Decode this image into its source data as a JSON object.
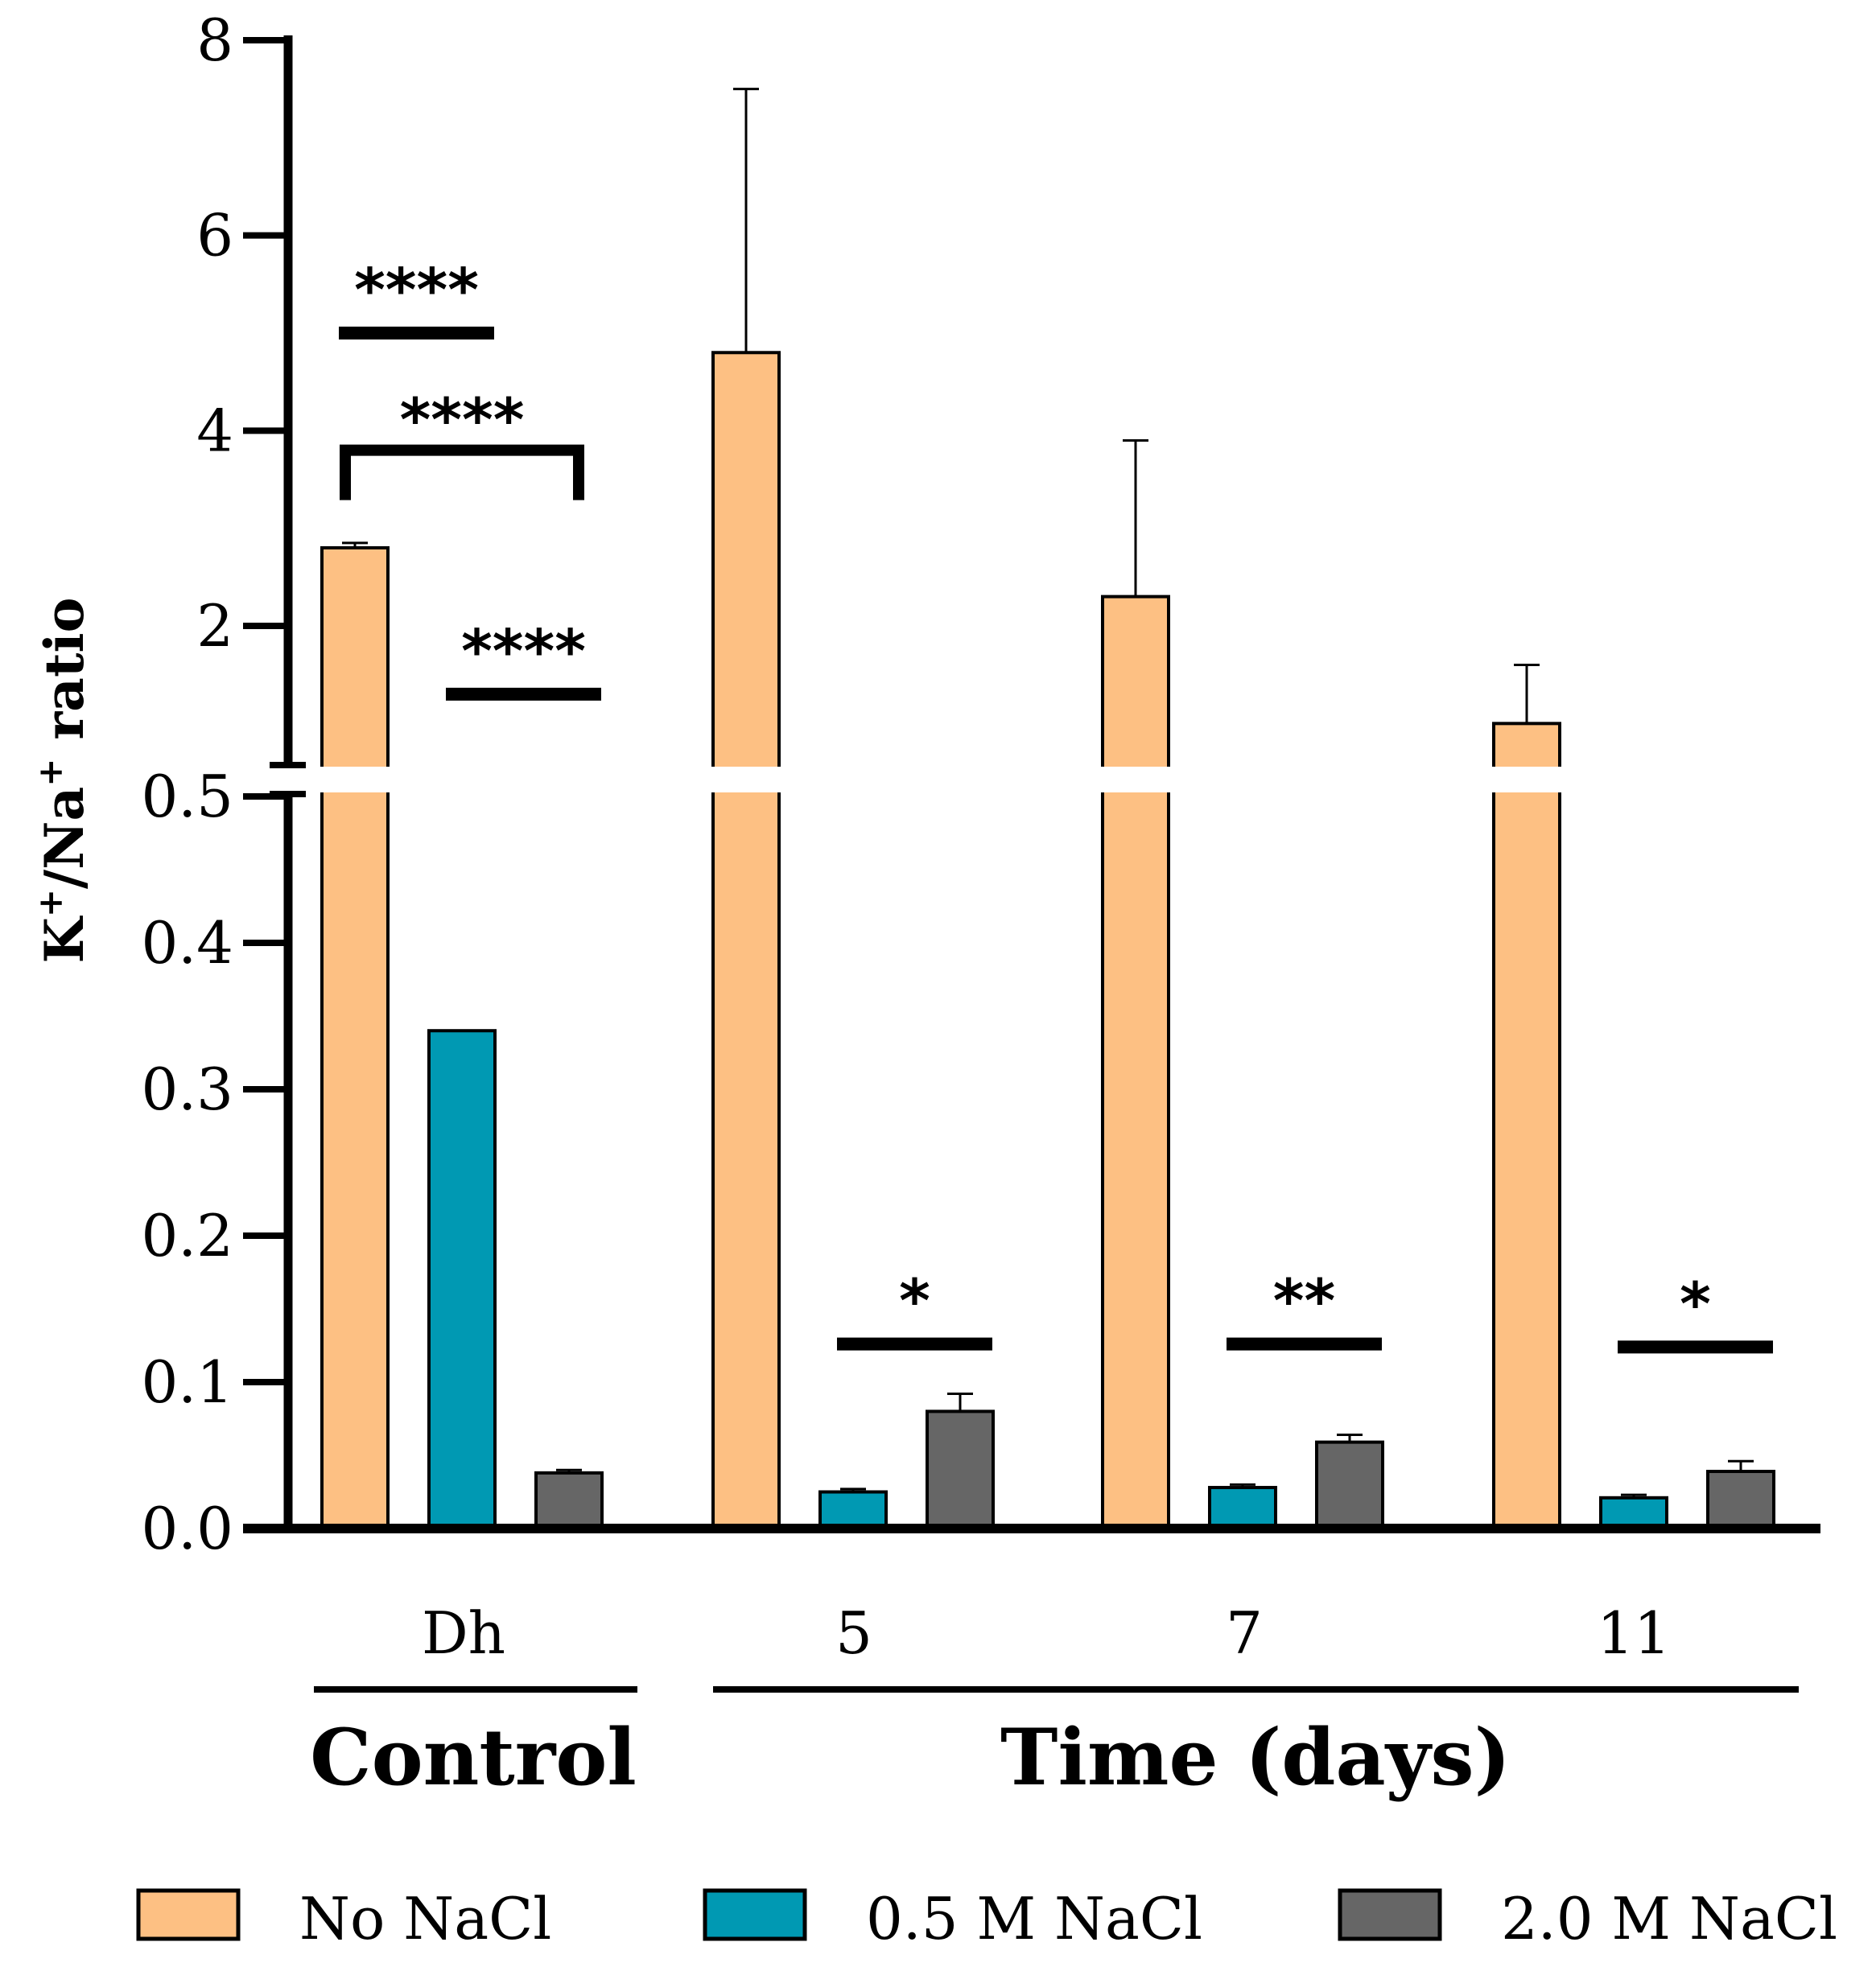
{
  "chart_data": {
    "type": "bar",
    "ylabel": {
      "k": "K",
      "sup1": "+",
      "slash_na": "/Na",
      "sup2": "+",
      "rest": " ratio"
    },
    "axis_break": true,
    "lower_segment": {
      "ylim": [
        0,
        0.5
      ],
      "ticks": [
        "0.0",
        "0.1",
        "0.2",
        "0.3",
        "0.4",
        "0.5"
      ]
    },
    "upper_segment": {
      "ylim": [
        0.5,
        8
      ],
      "ticks": [
        "2",
        "4",
        "6",
        "8"
      ]
    },
    "categories": [
      "Dh",
      "5",
      "7",
      "11"
    ],
    "group_labels": [
      {
        "label": "Control",
        "categories": [
          "Dh"
        ]
      },
      {
        "label": "Time (days)",
        "categories": [
          "5",
          "7",
          "11"
        ]
      }
    ],
    "series": [
      {
        "name": "No NaCl",
        "color": "#FDC083",
        "values": [
          2.8,
          4.8,
          2.3,
          1.0
        ],
        "errors": [
          0.05,
          2.7,
          1.6,
          0.6
        ]
      },
      {
        "name": "0.5 M NaCl",
        "color": "#0099B3",
        "values": [
          0.34,
          0.025,
          0.028,
          0.021
        ],
        "errors": [
          0.0,
          0.002,
          0.002,
          0.002
        ]
      },
      {
        "name": "2.0 M NaCl",
        "color": "#666666",
        "values": [
          0.038,
          0.08,
          0.059,
          0.039
        ],
        "errors": [
          0.002,
          0.012,
          0.005,
          0.007
        ]
      }
    ],
    "significance": [
      {
        "category": "Dh",
        "label": "****",
        "from_series": 0,
        "to_series": 1,
        "y": 5.0,
        "style": "line"
      },
      {
        "category": "Dh",
        "label": "****",
        "from_series": 0,
        "to_series": 2,
        "y": 3.8,
        "style": "bracket"
      },
      {
        "category": "Dh",
        "label": "****",
        "from_series": 1,
        "to_series": 2,
        "y": 1.3,
        "style": "line"
      },
      {
        "category": "5",
        "label": "*",
        "from_series": 1,
        "to_series": 2,
        "y": 0.126,
        "style": "line"
      },
      {
        "category": "7",
        "label": "**",
        "from_series": 1,
        "to_series": 2,
        "y": 0.126,
        "style": "line"
      },
      {
        "category": "11",
        "label": "*",
        "from_series": 1,
        "to_series": 2,
        "y": 0.124,
        "style": "line"
      }
    ],
    "legend_position": "bottom"
  }
}
